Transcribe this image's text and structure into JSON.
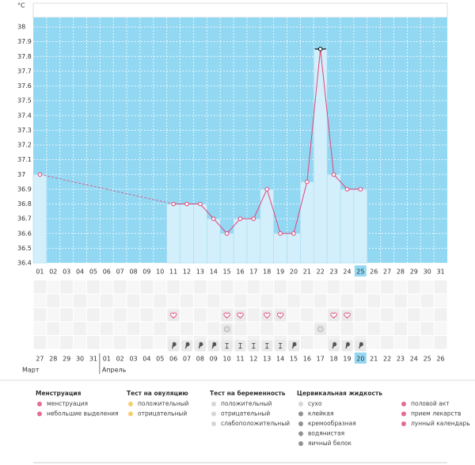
{
  "chart_data": {
    "type": "bar",
    "y_label": "°C",
    "categories": [
      "01",
      "02",
      "03",
      "04",
      "05",
      "06",
      "07",
      "08",
      "09",
      "10",
      "11",
      "12",
      "13",
      "14",
      "15",
      "16",
      "17",
      "18",
      "19",
      "20",
      "21",
      "22",
      "23",
      "24",
      "25",
      "26",
      "27",
      "28",
      "29",
      "30",
      "31"
    ],
    "values": [
      37.0,
      null,
      null,
      null,
      null,
      null,
      null,
      null,
      null,
      null,
      36.8,
      36.8,
      36.8,
      36.7,
      36.6,
      36.7,
      36.7,
      36.9,
      36.6,
      36.6,
      36.95,
      37.85,
      37.0,
      36.9,
      36.9,
      null,
      null,
      null,
      null,
      null,
      null
    ],
    "ylim": [
      36.4,
      38
    ],
    "yticks": [
      38,
      37.9,
      37.8,
      37.7,
      37.6,
      37.5,
      37.4,
      37.3,
      37.2,
      37.1,
      37,
      36.9,
      36.8,
      36.7,
      36.6,
      36.5,
      36.4
    ],
    "grid": true,
    "bar_color": "#d3effb",
    "line_color": "#e0457b",
    "plot_color": "#93d8f2",
    "current_day": "25",
    "cycle_days": [
      "27",
      "28",
      "29",
      "30",
      "31",
      "01",
      "02",
      "03",
      "04",
      "05",
      "06",
      "07",
      "08",
      "09",
      "10",
      "11",
      "12",
      "13",
      "14",
      "15",
      "16",
      "17",
      "18",
      "19",
      "20",
      "21",
      "22",
      "23",
      "24",
      "25",
      "26"
    ],
    "cycle_weekend": [
      false,
      false,
      false,
      false,
      true,
      true,
      false,
      false,
      false,
      false,
      false,
      true,
      true,
      false,
      false,
      false,
      false,
      false,
      true,
      true,
      false,
      false,
      false,
      false,
      false,
      true,
      true,
      false,
      false,
      false,
      false
    ],
    "weekend_color": "#e0245e",
    "current_cycle_day": "20",
    "months": [
      {
        "name": "Март",
        "start": 0
      },
      {
        "name": "Апрель",
        "start": 5
      }
    ],
    "markers": {
      "intercourse": [
        "11",
        "15",
        "16",
        "18",
        "19",
        "23",
        "24"
      ],
      "medication": [
        "15",
        "22"
      ],
      "creamy": [
        "11",
        "12",
        "13",
        "14",
        "20",
        "23",
        "24",
        "25"
      ],
      "sticky": [
        "15",
        "16",
        "17",
        "18",
        "19"
      ]
    }
  },
  "legend": [
    {
      "title": "Менструация",
      "items": [
        "менструация",
        "небольшие выделения"
      ]
    },
    {
      "title": "Тест на овуляцию",
      "items": [
        "положительный",
        "отрицательный"
      ]
    },
    {
      "title": "Тест на беременность",
      "items": [
        "положительный",
        "отрицательный",
        "слабоположительный"
      ]
    },
    {
      "title": "Цервикальная жидкость",
      "items": [
        "сухо",
        "клейкая",
        "кремообразная",
        "водянистая",
        "яичный белок"
      ]
    },
    {
      "title": null,
      "items": [
        "половой акт",
        "прием лекарств",
        "лунный календарь"
      ]
    }
  ]
}
